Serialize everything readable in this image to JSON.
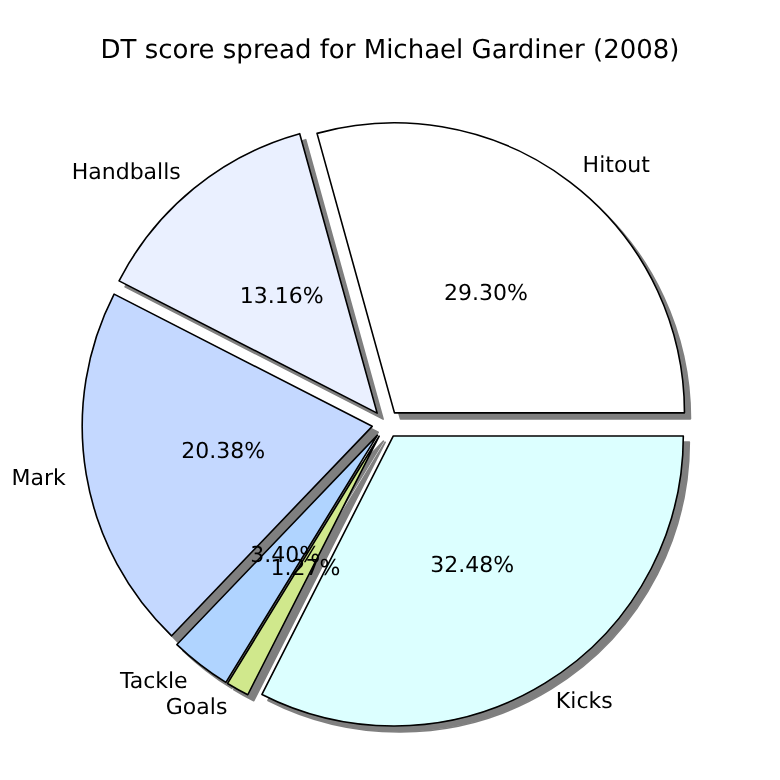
{
  "chart_data": {
    "type": "pie",
    "title": "DT score spread for Michael Gardiner (2008)",
    "categories": [
      "Hitout",
      "Handballs",
      "Mark",
      "Tackle",
      "Goals",
      "Kicks"
    ],
    "values": [
      29.3,
      13.16,
      20.38,
      3.4,
      1.27,
      32.48
    ],
    "value_labels": [
      "29.30%",
      "13.16%",
      "20.38%",
      "3.40%",
      "1.27%",
      "32.48%"
    ],
    "colors": [
      "#ffffff",
      "#eaf0ff",
      "#c4d8ff",
      "#b0d4ff",
      "#d0e88c",
      "#dcffff"
    ],
    "legend": false
  }
}
